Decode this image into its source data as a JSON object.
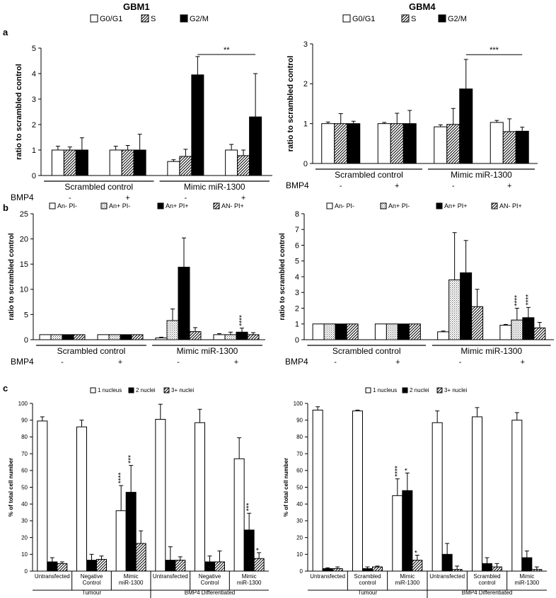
{
  "figure": {
    "panel_letters": [
      "a",
      "b",
      "c"
    ],
    "column_titles": [
      "GBM1",
      "GBM4"
    ]
  },
  "colors": {
    "black": "#000000",
    "white": "#ffffff",
    "bar_stroke": "#000000"
  },
  "chart_data": [
    {
      "id": "a-gbm1",
      "type": "bar",
      "panel": "a",
      "title": "GBM1",
      "ylabel": "ratio to scrambled control",
      "ylim": [
        0,
        5
      ],
      "yticks": [
        0,
        1,
        2,
        3,
        4,
        5
      ],
      "tick_decimals": 0,
      "legend": [
        "G0/G1",
        "S",
        "G2/M"
      ],
      "legend_position": "top",
      "categories": [
        "-",
        "+",
        "-",
        "+"
      ],
      "row_label": "BMP4",
      "groups": [
        {
          "label": "Scrambled control",
          "from": 0,
          "to": 1
        },
        {
          "label": "Mimic miR-1300",
          "from": 2,
          "to": 3
        }
      ],
      "series": [
        {
          "name": "G0/G1",
          "pattern": "white",
          "values": [
            1.0,
            1.0,
            0.55,
            1.0
          ],
          "errors": [
            0.15,
            0.15,
            0.07,
            0.22
          ]
        },
        {
          "name": "S",
          "pattern": "hatch",
          "values": [
            1.0,
            1.0,
            0.75,
            0.78
          ],
          "errors": [
            0.12,
            0.18,
            0.28,
            0.22
          ]
        },
        {
          "name": "G2/M",
          "pattern": "black",
          "values": [
            1.0,
            1.0,
            3.95,
            2.3
          ],
          "errors": [
            0.48,
            0.62,
            0.72,
            1.7
          ]
        }
      ],
      "annotations": [
        {
          "text": "**",
          "type": "bracket",
          "from": [
            2,
            2
          ],
          "to": [
            3,
            2
          ],
          "y": 4.75
        }
      ]
    },
    {
      "id": "a-gbm4",
      "type": "bar",
      "panel": "a",
      "title": "GBM4",
      "ylabel": "ratio to scrambled control",
      "ylim": [
        0,
        3
      ],
      "yticks": [
        0,
        1,
        2,
        3
      ],
      "tick_decimals": 0,
      "legend": [
        "G0/G1",
        "S",
        "G2/M"
      ],
      "legend_position": "top",
      "categories": [
        "-",
        "+",
        "-",
        "+"
      ],
      "row_label": "BMP4",
      "groups": [
        {
          "label": "Scrambled control",
          "from": 0,
          "to": 1
        },
        {
          "label": "Mimic miR-1300",
          "from": 2,
          "to": 3
        }
      ],
      "series": [
        {
          "name": "G0/G1",
          "pattern": "white",
          "values": [
            1.0,
            1.0,
            0.92,
            1.03
          ],
          "errors": [
            0.04,
            0.03,
            0.05,
            0.05
          ]
        },
        {
          "name": "S",
          "pattern": "hatch",
          "values": [
            1.0,
            1.0,
            0.98,
            0.8
          ],
          "errors": [
            0.25,
            0.26,
            0.4,
            0.32
          ]
        },
        {
          "name": "G2/M",
          "pattern": "black",
          "values": [
            1.0,
            1.0,
            1.87,
            0.81
          ],
          "errors": [
            0.06,
            0.33,
            0.74,
            0.1
          ]
        }
      ],
      "annotations": [
        {
          "text": "***",
          "type": "bracket",
          "from": [
            2,
            2
          ],
          "to": [
            3,
            2
          ],
          "y": 2.73
        }
      ]
    },
    {
      "id": "b-gbm1",
      "type": "bar",
      "panel": "b",
      "ylabel": "ratio to scrambled control",
      "ylim": [
        0,
        25
      ],
      "yticks": [
        0,
        5,
        10,
        15,
        20,
        25
      ],
      "tick_decimals": 0,
      "legend": [
        "An- PI-",
        "An+ PI-",
        "An+ PI+",
        "AN- PI+"
      ],
      "legend_position": "top",
      "categories": [
        "-",
        "+",
        "-",
        "+"
      ],
      "row_label": "BMP4",
      "groups": [
        {
          "label": "Scrambled control",
          "from": 0,
          "to": 1
        },
        {
          "label": "Mimic miR-1300",
          "from": 2,
          "to": 3
        }
      ],
      "series": [
        {
          "name": "An- PI-",
          "pattern": "white",
          "values": [
            1.0,
            1.0,
            0.35,
            1.0
          ],
          "errors": [
            0,
            0,
            0.15,
            0.2
          ]
        },
        {
          "name": "An+ PI-",
          "pattern": "dots",
          "values": [
            1.0,
            1.0,
            3.8,
            1.0
          ],
          "errors": [
            0,
            0,
            2.3,
            0.5
          ]
        },
        {
          "name": "An+ PI+",
          "pattern": "black",
          "values": [
            1.0,
            1.0,
            14.4,
            1.5
          ],
          "errors": [
            0,
            0,
            5.8,
            0.8
          ]
        },
        {
          "name": "AN- PI+",
          "pattern": "hatch",
          "values": [
            1.0,
            1.0,
            1.6,
            1.0
          ],
          "errors": [
            0,
            0,
            0.8,
            0.4
          ]
        }
      ],
      "annotations": [
        {
          "text": "****",
          "type": "star",
          "bar": [
            3,
            2
          ],
          "offset": 0.5
        }
      ]
    },
    {
      "id": "b-gbm4",
      "type": "bar",
      "panel": "b",
      "ylabel": "ratio to scrambled control",
      "ylim": [
        0,
        8
      ],
      "yticks": [
        0,
        1,
        2,
        3,
        4,
        5,
        6,
        7,
        8
      ],
      "tick_decimals": 0,
      "legend": [
        "An- PI-",
        "An+ PI-",
        "An+ PI+",
        "AN- PI+"
      ],
      "legend_position": "top",
      "categories": [
        "-",
        "+",
        "-",
        "+"
      ],
      "row_label": "BMP4",
      "groups": [
        {
          "label": "Scrambled control",
          "from": 0,
          "to": 1
        },
        {
          "label": "Mimic miR-1300",
          "from": 2,
          "to": 3
        }
      ],
      "series": [
        {
          "name": "An- PI-",
          "pattern": "white",
          "values": [
            1.0,
            1.0,
            0.5,
            0.92
          ],
          "errors": [
            0,
            0,
            0.05,
            0.05
          ]
        },
        {
          "name": "An+ PI-",
          "pattern": "dots",
          "values": [
            1.0,
            1.0,
            3.8,
            1.25
          ],
          "errors": [
            0,
            0,
            3.0,
            0.75
          ]
        },
        {
          "name": "An+ PI+",
          "pattern": "black",
          "values": [
            1.0,
            1.0,
            4.25,
            1.4
          ],
          "errors": [
            0,
            0,
            2.05,
            0.65
          ]
        },
        {
          "name": "AN- PI+",
          "pattern": "hatch",
          "values": [
            1.0,
            1.0,
            2.1,
            0.75
          ],
          "errors": [
            0,
            0,
            1.1,
            0.35
          ]
        }
      ],
      "annotations": [
        {
          "text": "****",
          "type": "star",
          "bar": [
            3,
            1
          ],
          "offset": 0.2
        },
        {
          "text": "****",
          "type": "star",
          "bar": [
            3,
            2
          ],
          "offset": 0.2
        }
      ]
    },
    {
      "id": "c-gbm1",
      "type": "bar",
      "panel": "c",
      "ylabel": "% of total cell number",
      "ylim": [
        0,
        100
      ],
      "yticks": [
        0,
        10,
        20,
        30,
        40,
        50,
        60,
        70,
        80,
        90,
        100
      ],
      "tick_decimals": 0,
      "legend": [
        "1 nucleus",
        "2 nuclei",
        "3+ nuclei"
      ],
      "legend_position": "top",
      "categories": [
        "Untransfected",
        "Negative Control",
        "Mimic miR-1300",
        "Untransfected",
        "Negative Control",
        "Mimic miR-1300"
      ],
      "groups": [
        {
          "label": "Tumour",
          "from": 0,
          "to": 2
        },
        {
          "label": "BMP4 Differentiated",
          "from": 3,
          "to": 5
        }
      ],
      "series": [
        {
          "name": "1 nucleus",
          "pattern": "white",
          "values": [
            89.5,
            86,
            36,
            90.5,
            88.5,
            67
          ],
          "errors": [
            2.5,
            4,
            15,
            9,
            8,
            12.5
          ]
        },
        {
          "name": "2 nuclei",
          "pattern": "black",
          "values": [
            5.5,
            6.5,
            47,
            6.5,
            5.5,
            24.5
          ],
          "errors": [
            2.5,
            3.5,
            16,
            8,
            3.5,
            10
          ]
        },
        {
          "name": "3+ nuclei",
          "pattern": "hatch",
          "values": [
            4.5,
            7,
            16.5,
            6.5,
            5.5,
            7.5
          ],
          "errors": [
            1,
            2,
            7.5,
            2,
            6.5,
            3.5
          ]
        }
      ],
      "annotations": [
        {
          "text": "****",
          "type": "star",
          "bar": [
            2,
            0
          ],
          "offset": 1.5
        },
        {
          "text": "***",
          "type": "star",
          "bar": [
            2,
            1
          ],
          "offset": 1.5
        },
        {
          "text": "***",
          "type": "star",
          "bar": [
            5,
            1
          ],
          "offset": 1.5
        },
        {
          "text": "*",
          "type": "star",
          "bar": [
            5,
            2
          ],
          "offset": 1
        }
      ]
    },
    {
      "id": "c-gbm4",
      "type": "bar",
      "panel": "c",
      "ylabel": "% of total cell number",
      "ylim": [
        0,
        100
      ],
      "yticks": [
        0,
        10,
        20,
        30,
        40,
        50,
        60,
        70,
        80,
        90,
        100
      ],
      "tick_decimals": 0,
      "legend": [
        "1 nucleus",
        "2 nuclei",
        "3+ nuclei"
      ],
      "legend_position": "top",
      "categories": [
        "Untransfected",
        "Scrambled control",
        "Mimic miR-1300",
        "Untransfected",
        "Scrambled control",
        "Mimic miR-1300"
      ],
      "groups": [
        {
          "label": "Tumour",
          "from": 0,
          "to": 2
        },
        {
          "label": "BMP4 Differentiated",
          "from": 3,
          "to": 5
        }
      ],
      "series": [
        {
          "name": "1 nucleus",
          "pattern": "white",
          "values": [
            96,
            95.5,
            45,
            88.5,
            92,
            90
          ],
          "errors": [
            2,
            0.5,
            10,
            7,
            5.5,
            4.5
          ]
        },
        {
          "name": "2 nuclei",
          "pattern": "black",
          "values": [
            1.5,
            1.5,
            48,
            10,
            4.5,
            8
          ],
          "errors": [
            0.5,
            1,
            10.5,
            6.5,
            3.5,
            4
          ]
        },
        {
          "name": "3+ nuclei",
          "pattern": "hatch",
          "values": [
            1.5,
            2.5,
            6.5,
            1,
            2.5,
            1
          ],
          "errors": [
            1,
            0.5,
            3,
            2,
            2,
            1.5
          ]
        }
      ],
      "annotations": [
        {
          "text": "****",
          "type": "star",
          "bar": [
            2,
            0
          ],
          "offset": 1.5
        },
        {
          "text": "*",
          "type": "star",
          "bar": [
            2,
            1
          ],
          "offset": 1.5
        },
        {
          "text": "*",
          "type": "star",
          "bar": [
            2,
            2
          ],
          "offset": 1
        }
      ]
    }
  ]
}
